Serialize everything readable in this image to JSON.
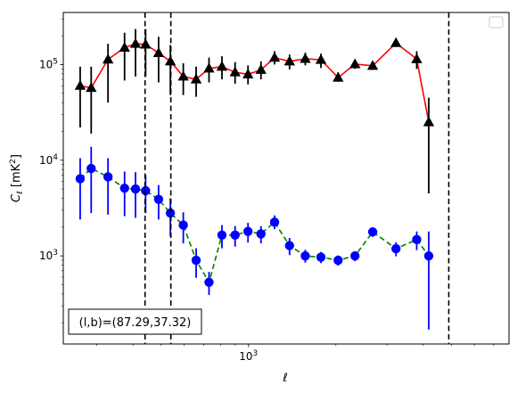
{
  "chart_data": {
    "type": "scatter",
    "xlabel": "ℓ",
    "ylabel": "C",
    "ylabel_subscript": "ℓ",
    "ylabel_unit": "[mK",
    "ylabel_unit_sup": "2",
    "ylabel_unit_close": "]",
    "xscale": "log",
    "yscale": "log",
    "xlim": [
      230,
      7900
    ],
    "ylim": [
      120,
      350000
    ],
    "x_tick_labels": [
      {
        "value": 1000,
        "base": "10",
        "exp": "3"
      }
    ],
    "y_tick_labels": [
      {
        "value": 1000,
        "base": "10",
        "exp": "3"
      },
      {
        "value": 10000,
        "base": "10",
        "exp": "4"
      },
      {
        "value": 100000,
        "base": "10",
        "exp": "5"
      }
    ],
    "vlines": [
      440,
      540,
      4900
    ],
    "annotation": "(l,b)=(87.29,37.32)",
    "legend": {
      "visible": true,
      "placement": "upper right",
      "entries": []
    },
    "series": [
      {
        "marker": "triangle",
        "marker_color": "#000000",
        "line_color": "#ff0000",
        "line_style": "solid",
        "error_color": "#000000",
        "points": [
          {
            "x": 263,
            "y": 60000,
            "lo": 22000,
            "hi": 95000
          },
          {
            "x": 287,
            "y": 57000,
            "lo": 19000,
            "hi": 95000
          },
          {
            "x": 328,
            "y": 113000,
            "lo": 40000,
            "hi": 165000
          },
          {
            "x": 374,
            "y": 150000,
            "lo": 68000,
            "hi": 215000
          },
          {
            "x": 408,
            "y": 165000,
            "lo": 75000,
            "hi": 235000
          },
          {
            "x": 442,
            "y": 162000,
            "lo": 75000,
            "hi": 235000
          },
          {
            "x": 490,
            "y": 132000,
            "lo": 65000,
            "hi": 195000
          },
          {
            "x": 538,
            "y": 108000,
            "lo": 48000,
            "hi": 160000
          },
          {
            "x": 596,
            "y": 75000,
            "lo": 48000,
            "hi": 103000
          },
          {
            "x": 660,
            "y": 70000,
            "lo": 46000,
            "hi": 95000
          },
          {
            "x": 731,
            "y": 91000,
            "lo": 65000,
            "hi": 118000
          },
          {
            "x": 810,
            "y": 95000,
            "lo": 70000,
            "hi": 122000
          },
          {
            "x": 899,
            "y": 83000,
            "lo": 63000,
            "hi": 106000
          },
          {
            "x": 996,
            "y": 79000,
            "lo": 62000,
            "hi": 98000
          },
          {
            "x": 1104,
            "y": 88000,
            "lo": 70000,
            "hi": 108000
          },
          {
            "x": 1230,
            "y": 118000,
            "lo": 100000,
            "hi": 138000
          },
          {
            "x": 1385,
            "y": 108000,
            "lo": 89000,
            "hi": 127000
          },
          {
            "x": 1569,
            "y": 115000,
            "lo": 98000,
            "hi": 133000
          },
          {
            "x": 1777,
            "y": 112000,
            "lo": 92000,
            "hi": 130000
          },
          {
            "x": 2036,
            "y": 73000,
            "lo": 66000,
            "hi": 83000
          },
          {
            "x": 2328,
            "y": 101000,
            "lo": 90000,
            "hi": 112000
          },
          {
            "x": 2679,
            "y": 97000,
            "lo": 88000,
            "hi": 108000
          },
          {
            "x": 3223,
            "y": 168000,
            "lo": 155000,
            "hi": 182000
          },
          {
            "x": 3799,
            "y": 114000,
            "lo": 90000,
            "hi": 138000
          },
          {
            "x": 4180,
            "y": 25000,
            "lo": 4500,
            "hi": 45000
          }
        ]
      },
      {
        "marker": "circle",
        "marker_color": "#0000ff",
        "line_color": "#008000",
        "line_style": "dashed",
        "error_color": "#0000ff",
        "points": [
          {
            "x": 263,
            "y": 6400,
            "lo": 2400,
            "hi": 10500
          },
          {
            "x": 287,
            "y": 8200,
            "lo": 2800,
            "hi": 13800
          },
          {
            "x": 328,
            "y": 6700,
            "lo": 2700,
            "hi": 10500
          },
          {
            "x": 374,
            "y": 5100,
            "lo": 2600,
            "hi": 7600
          },
          {
            "x": 408,
            "y": 5000,
            "lo": 2500,
            "hi": 7500
          },
          {
            "x": 442,
            "y": 4800,
            "lo": 2800,
            "hi": 7000
          },
          {
            "x": 490,
            "y": 3900,
            "lo": 2400,
            "hi": 5500
          },
          {
            "x": 538,
            "y": 2800,
            "lo": 1600,
            "hi": 4000
          },
          {
            "x": 596,
            "y": 2100,
            "lo": 1350,
            "hi": 2850
          },
          {
            "x": 660,
            "y": 900,
            "lo": 590,
            "hi": 1200
          },
          {
            "x": 731,
            "y": 530,
            "lo": 390,
            "hi": 680
          },
          {
            "x": 810,
            "y": 1650,
            "lo": 1200,
            "hi": 2100
          },
          {
            "x": 899,
            "y": 1650,
            "lo": 1250,
            "hi": 2050
          },
          {
            "x": 996,
            "y": 1800,
            "lo": 1380,
            "hi": 2220
          },
          {
            "x": 1104,
            "y": 1700,
            "lo": 1350,
            "hi": 2050
          },
          {
            "x": 1230,
            "y": 2250,
            "lo": 1900,
            "hi": 2650
          },
          {
            "x": 1385,
            "y": 1280,
            "lo": 1020,
            "hi": 1540
          },
          {
            "x": 1569,
            "y": 1000,
            "lo": 850,
            "hi": 1160
          },
          {
            "x": 1777,
            "y": 970,
            "lo": 840,
            "hi": 1100
          },
          {
            "x": 2036,
            "y": 900,
            "lo": 790,
            "hi": 1010
          },
          {
            "x": 2328,
            "y": 1000,
            "lo": 880,
            "hi": 1120
          },
          {
            "x": 2679,
            "y": 1780,
            "lo": 1580,
            "hi": 1980
          },
          {
            "x": 3223,
            "y": 1190,
            "lo": 990,
            "hi": 1390
          },
          {
            "x": 3799,
            "y": 1480,
            "lo": 1150,
            "hi": 1800
          },
          {
            "x": 4180,
            "y": 1000,
            "lo": 170,
            "hi": 1800
          }
        ]
      }
    ]
  }
}
